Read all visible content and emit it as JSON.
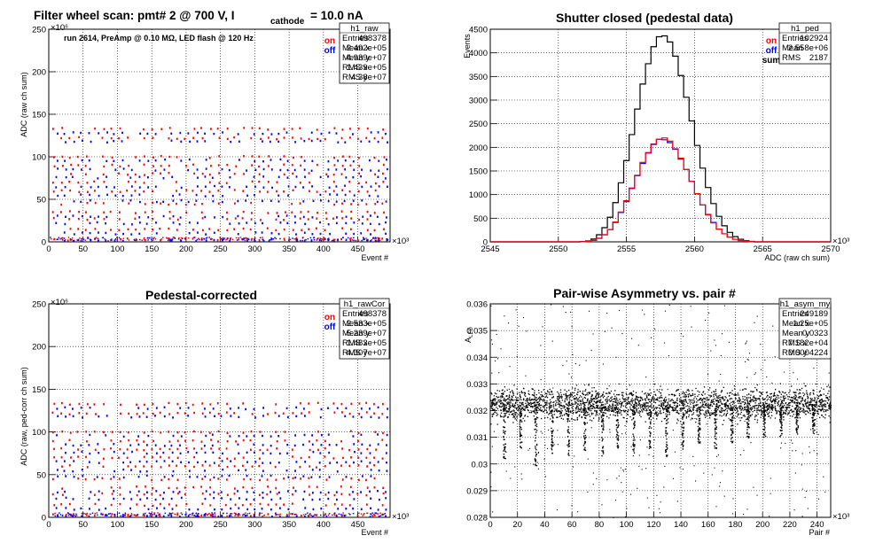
{
  "colors": {
    "on": "#ff0000",
    "off": "#0000ff",
    "sum": "#000000",
    "grid": "#000000",
    "bg": "#ffffff"
  },
  "chart_data": [
    {
      "type": "scatter",
      "title": "Filter wheel scan: pmt#   2 @   700 V, I",
      "title_sub": "cathode",
      "title_tail": "= 10.0 nA",
      "xlabel": "Event #",
      "ylabel": "ADC (raw ch sum)",
      "x_exponent": "×10³",
      "y_exponent": "×10⁶",
      "xlim": [
        0,
        497
      ],
      "ylim": [
        0,
        250
      ],
      "xticks": [
        0,
        50,
        100,
        150,
        200,
        250,
        300,
        350,
        400,
        450
      ],
      "yticks": [
        0,
        50,
        100,
        150,
        200,
        250
      ],
      "annotation": "run 2614, PreAmp @ 0.10 MΩ, LED flash @  120 Hz",
      "grid": true,
      "legend": {
        "position": "top-right",
        "entries": [
          "on",
          "off"
        ]
      },
      "stats": {
        "name": "h1_raw",
        "rows": [
          [
            "Entries",
            "498378"
          ],
          [
            "Mean x",
            "2.492e+05"
          ],
          [
            "Mean y",
            "4.939e+07"
          ],
          [
            "RMS x",
            "1.439e+05"
          ],
          [
            "RMS y",
            "4.38e+07"
          ]
        ]
      },
      "series": [
        {
          "name": "on",
          "levels": [
            133,
            122,
            100,
            90,
            80,
            70,
            60,
            45,
            35,
            27,
            15,
            3
          ]
        },
        {
          "name": "off",
          "levels": [
            128,
            118,
            96,
            85,
            76,
            65,
            55,
            48,
            30,
            22,
            10,
            2
          ]
        }
      ],
      "period": 24
    },
    {
      "type": "bar",
      "title": "Shutter closed (pedestal data)",
      "xlabel": "ADC (raw ch sum)",
      "ylabel": "Events",
      "x_exponent": "×10³",
      "xlim": [
        2545,
        2570
      ],
      "ylim": [
        0,
        4500
      ],
      "xticks": [
        2545,
        2550,
        2555,
        2560,
        2565,
        2570
      ],
      "yticks": [
        0,
        500,
        1000,
        1500,
        2000,
        2500,
        3000,
        3500,
        4000,
        4500
      ],
      "grid": true,
      "legend": {
        "position": "top-right",
        "entries": [
          "on",
          "off",
          "sum"
        ]
      },
      "stats": {
        "name": "h1_ped",
        "rows": [
          [
            "Entries",
            "102924"
          ],
          [
            "Mean",
            "2.558e+06"
          ],
          [
            "RMS",
            "2187"
          ]
        ]
      },
      "histogram": {
        "bin_start": 2551.6,
        "bin_width": 0.4,
        "sum": [
          5,
          20,
          60,
          150,
          300,
          520,
          830,
          1250,
          1720,
          2270,
          2810,
          3340,
          3770,
          4130,
          4340,
          4360,
          4230,
          3930,
          3520,
          3060,
          2560,
          2040,
          1560,
          1150,
          810,
          540,
          340,
          200,
          110,
          55,
          25,
          10
        ],
        "on": [
          3,
          10,
          30,
          75,
          150,
          260,
          420,
          630,
          870,
          1140,
          1410,
          1680,
          1890,
          2060,
          2170,
          2200,
          2130,
          1970,
          1770,
          1530,
          1280,
          1020,
          780,
          570,
          400,
          270,
          170,
          100,
          55,
          28,
          12,
          5
        ],
        "off": [
          2,
          10,
          30,
          75,
          150,
          260,
          410,
          620,
          850,
          1130,
          1400,
          1660,
          1880,
          2070,
          2170,
          2160,
          2100,
          1960,
          1750,
          1530,
          1280,
          1020,
          780,
          580,
          410,
          270,
          170,
          100,
          55,
          27,
          13,
          5
        ]
      }
    },
    {
      "type": "scatter",
      "title": "Pedestal-corrected",
      "xlabel": "Event #",
      "ylabel": "ADC (raw, ped-corr ch sum)",
      "x_exponent": "×10³",
      "y_exponent": "×10⁶",
      "xlim": [
        0,
        497
      ],
      "ylim": [
        0,
        250
      ],
      "xticks": [
        0,
        50,
        100,
        150,
        200,
        250,
        300,
        350,
        400,
        450
      ],
      "yticks": [
        0,
        50,
        100,
        150,
        200,
        250
      ],
      "grid": true,
      "legend": {
        "position": "top-right",
        "entries": [
          "on",
          "off"
        ]
      },
      "stats": {
        "name": "h1_rawCor",
        "rows": [
          [
            "Entries",
            "498378"
          ],
          [
            "Mean x",
            "2.533e+05"
          ],
          [
            "Mean y",
            "5.239e+07"
          ],
          [
            "RMS x",
            "1.483e+05"
          ],
          [
            "RMS y",
            "4.307e+07"
          ]
        ]
      },
      "series": [
        {
          "name": "on",
          "levels": [
            133,
            122,
            100,
            90,
            80,
            70,
            60,
            45,
            35,
            27,
            15,
            3
          ]
        },
        {
          "name": "off",
          "levels": [
            128,
            118,
            96,
            85,
            76,
            65,
            55,
            48,
            30,
            22,
            10,
            2
          ]
        }
      ],
      "period": 24
    },
    {
      "type": "scatter",
      "title": "Pair-wise Asymmetry vs. pair #",
      "xlabel": "Pair #",
      "ylabel": "A",
      "ylabel_sub": "LED",
      "x_exponent": "×10³",
      "xlim": [
        0,
        250
      ],
      "ylim": [
        0.028,
        0.036
      ],
      "xticks": [
        0,
        20,
        40,
        60,
        80,
        100,
        120,
        140,
        160,
        180,
        200,
        220,
        240
      ],
      "yticks": [
        0.028,
        0.029,
        0.03,
        0.031,
        0.032,
        0.033,
        0.034,
        0.035,
        0.036
      ],
      "ytick_labels": [
        "0.028",
        "0.029",
        "0.03",
        "0.031",
        "0.032",
        "0.033",
        "0.034",
        "0.035",
        "0.036"
      ],
      "grid": true,
      "stats": {
        "name": "h1_asym_my",
        "rows": [
          [
            "Entries",
            "249189"
          ],
          [
            "Mean x",
            "1.25e+05"
          ],
          [
            "Mean y",
            "0.0323"
          ],
          [
            "RMS x",
            "7.182e+04"
          ],
          [
            "RMS y",
            "0.0004224"
          ]
        ]
      },
      "band": {
        "center": 0.03225,
        "half_width": 0.0005
      },
      "dips": [
        {
          "x": 10,
          "min": 0.0302
        },
        {
          "x": 22,
          "min": 0.0306
        },
        {
          "x": 33,
          "min": 0.0299
        },
        {
          "x": 45,
          "min": 0.0304
        },
        {
          "x": 57,
          "min": 0.0303
        },
        {
          "x": 69,
          "min": 0.0305
        },
        {
          "x": 82,
          "min": 0.0303
        },
        {
          "x": 93,
          "min": 0.0306
        },
        {
          "x": 105,
          "min": 0.0304
        },
        {
          "x": 117,
          "min": 0.0306
        },
        {
          "x": 129,
          "min": 0.0303
        },
        {
          "x": 141,
          "min": 0.0305
        },
        {
          "x": 153,
          "min": 0.0307
        },
        {
          "x": 165,
          "min": 0.0306
        },
        {
          "x": 177,
          "min": 0.0308
        },
        {
          "x": 189,
          "min": 0.0309
        },
        {
          "x": 201,
          "min": 0.0309
        },
        {
          "x": 213,
          "min": 0.031
        },
        {
          "x": 225,
          "min": 0.0311
        },
        {
          "x": 237,
          "min": 0.0311
        }
      ]
    }
  ]
}
